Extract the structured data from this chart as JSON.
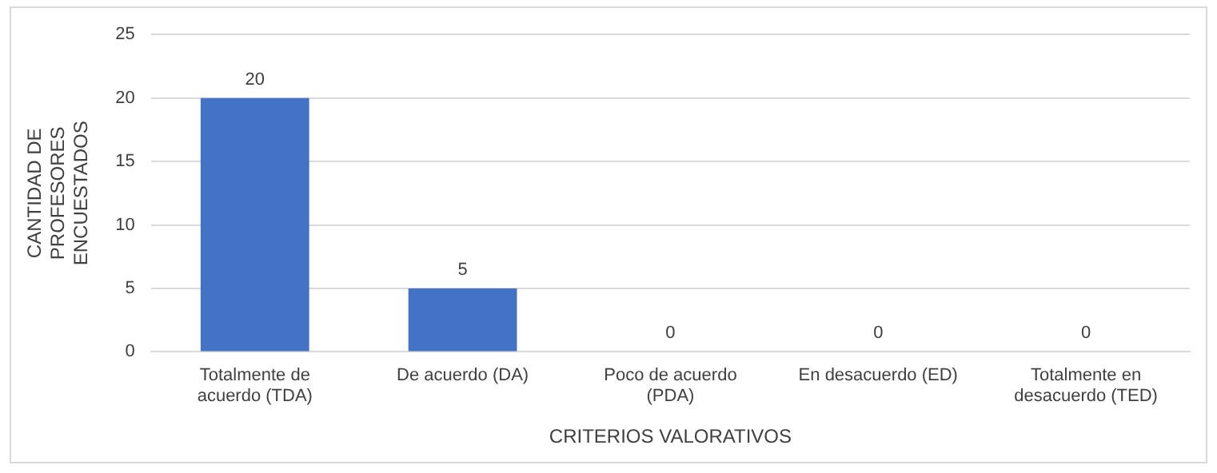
{
  "chart_data": {
    "type": "bar",
    "xlabel": "CRITERIOS VALORATIVOS",
    "ylabel": "CANTIDAD DE PROFESORES ENCUESTADOS",
    "categories": [
      "Totalmente de acuerdo (TDA)",
      "De acuerdo (DA)",
      "Poco de acuerdo (PDA)",
      "En desacuerdo (ED)",
      "Totalmente en desacuerdo (TED)"
    ],
    "values": [
      20,
      5,
      0,
      0,
      0
    ],
    "color": "#4472c4",
    "ylim": [
      0,
      25
    ],
    "yticks": [
      0,
      5,
      10,
      15,
      20,
      25
    ],
    "grid": "y",
    "legend": false,
    "data_labels": true
  }
}
